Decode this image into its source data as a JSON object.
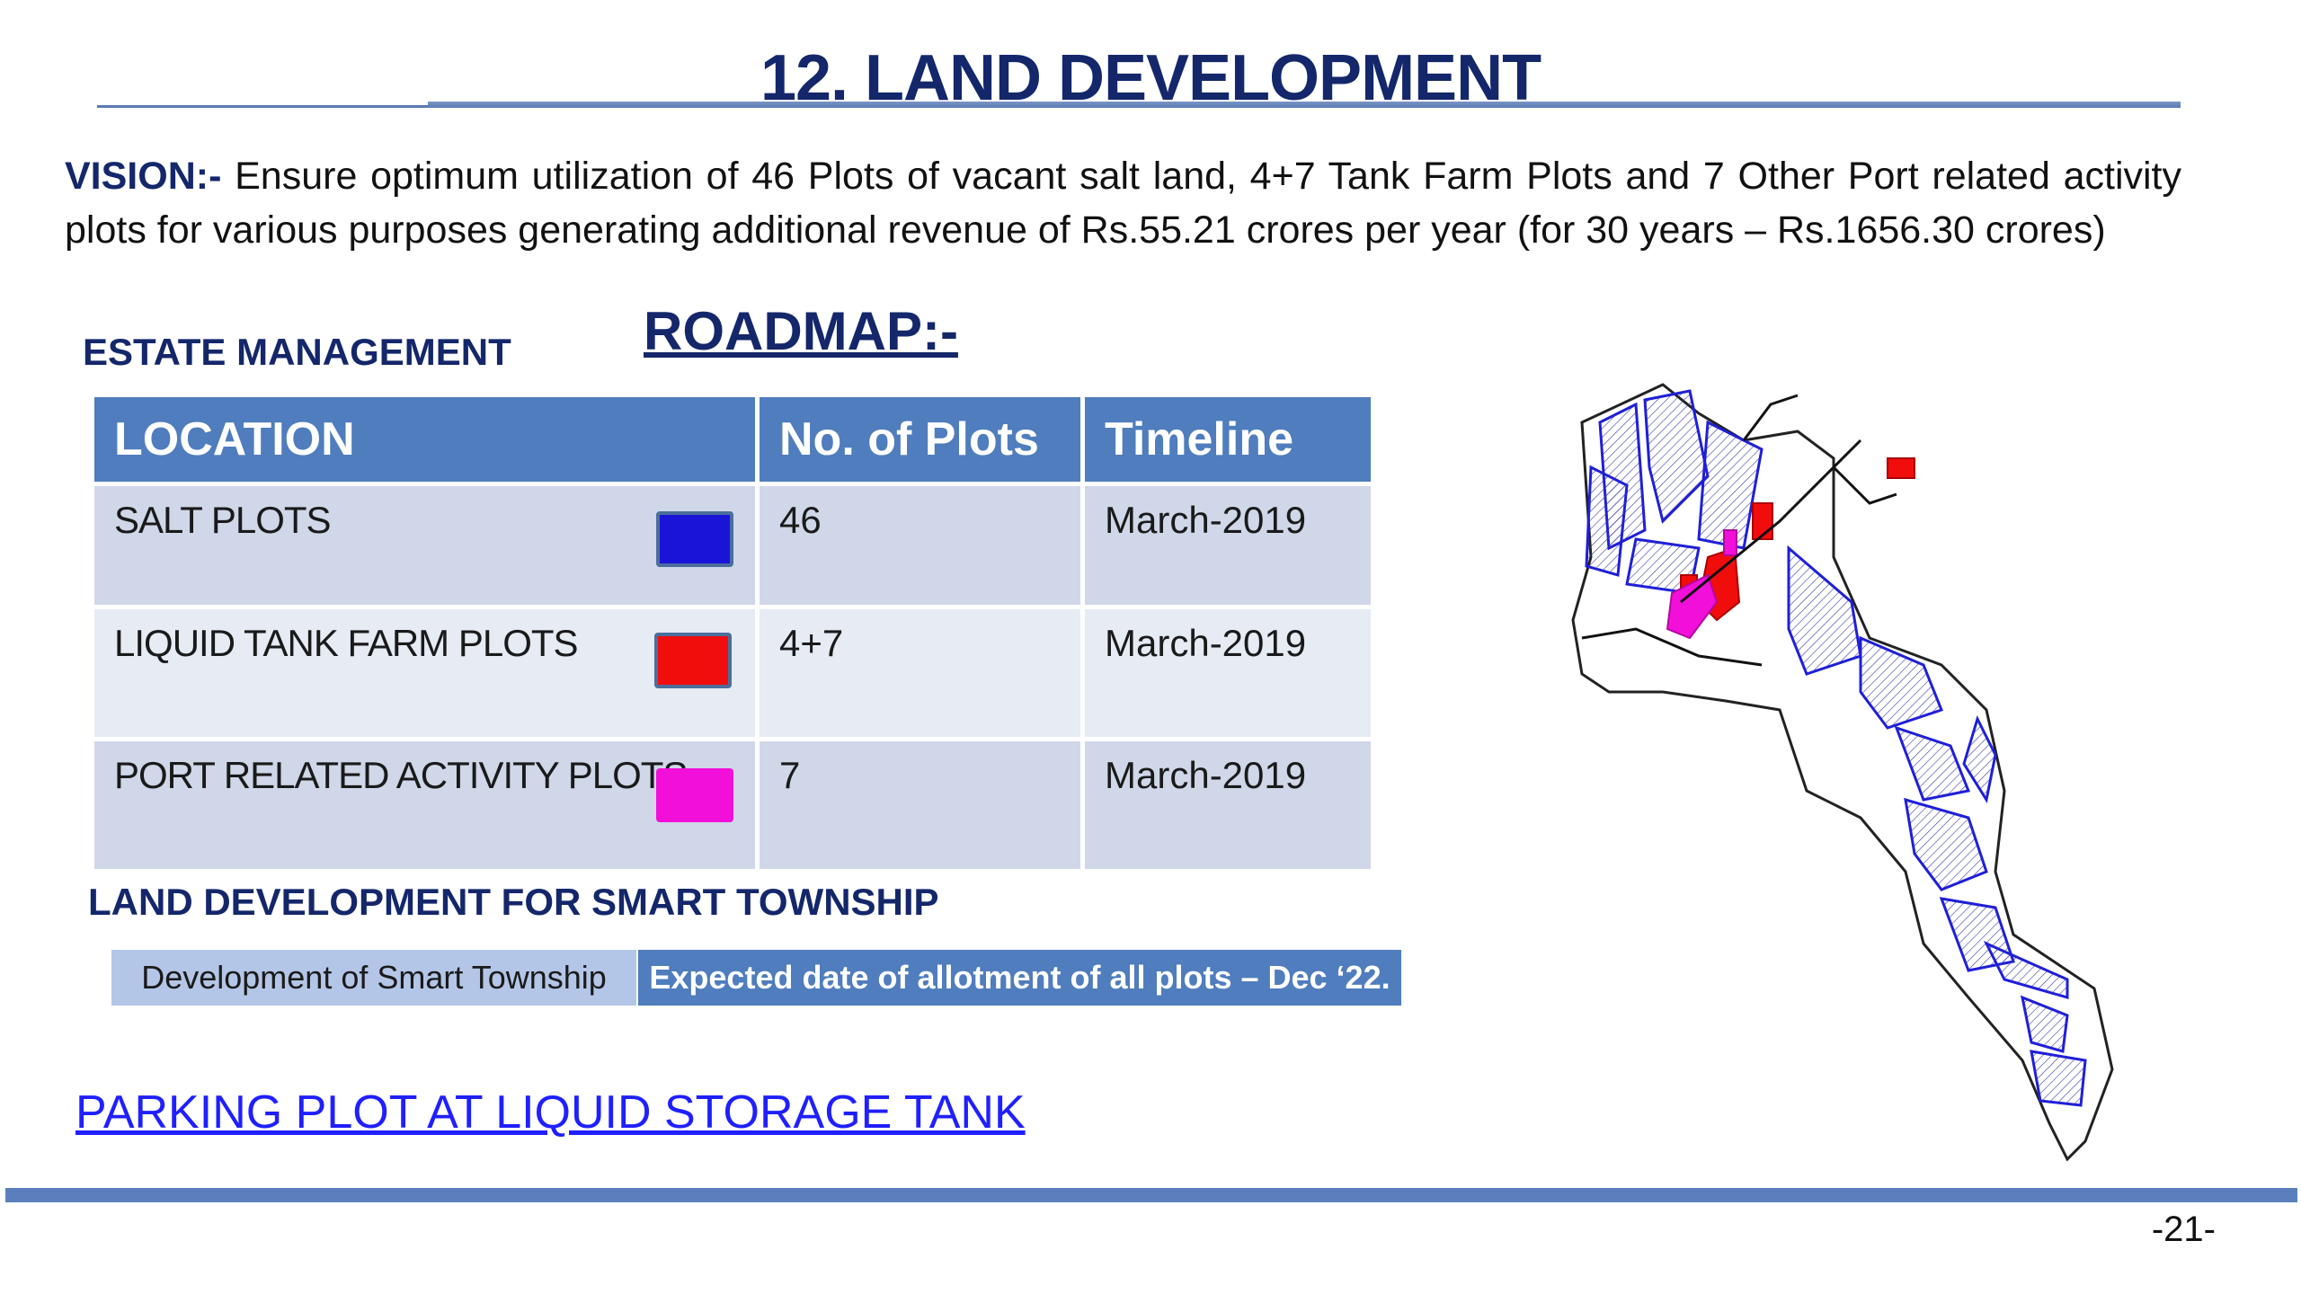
{
  "title": "12. LAND DEVELOPMENT",
  "vision": {
    "label": "VISION:-",
    "text": " Ensure optimum utilization of 46 Plots of vacant salt land, 4+7 Tank Farm Plots and 7 Other Port related activity plots for various purposes generating additional revenue of Rs.55.21 crores per year (for 30 years – Rs.1656.30 crores)"
  },
  "estate_heading": "ESTATE MANAGEMENT",
  "roadmap_heading": "ROADMAP:-",
  "table": {
    "headers": [
      "LOCATION",
      "No. of Plots",
      "Timeline"
    ],
    "rows": [
      {
        "location": "SALT PLOTS",
        "plots": "46",
        "timeline": "March-2019",
        "color": "#1a14d9"
      },
      {
        "location": "LIQUID TANK FARM PLOTS",
        "plots": "4+7",
        "timeline": "March-2019",
        "color": "#f20d0d"
      },
      {
        "location": "PORT RELATED ACTIVITY PLOTS",
        "plots": "7",
        "timeline": "March-2019",
        "color": "#f20fd9"
      }
    ]
  },
  "smart_heading": "LAND DEVELOPMENT FOR SMART TOWNSHIP",
  "smart_bar": {
    "left": "Development of Smart Township",
    "right": "Expected date of allotment of all plots – Dec ‘22."
  },
  "parking_link": "PARKING PLOT AT LIQUID STORAGE TANK",
  "page_number": "-21-",
  "colors": {
    "title": "#14276b",
    "header_fill": "#4f7dbd",
    "row_fill": "#cfd7e8",
    "link": "#1f1fff",
    "map_outline": "#1f1fd9"
  }
}
